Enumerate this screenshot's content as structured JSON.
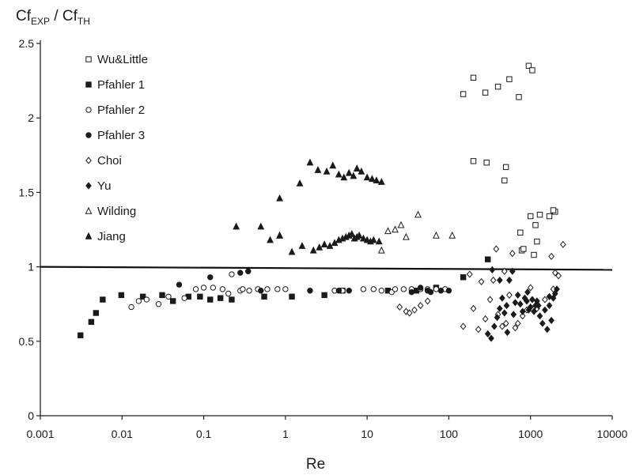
{
  "chart_data": {
    "type": "scatter",
    "title": "",
    "ylabel": {
      "main": "Cf",
      "sub1": "EXP",
      "sep": " / Cf",
      "sub2": "TH"
    },
    "xlabel": "Re",
    "x_scale": "log",
    "xlim": [
      0.001,
      10000
    ],
    "ylim": [
      0,
      2.5
    ],
    "x_ticks": [
      "0.001",
      "0.01",
      "0.1",
      "1",
      "10",
      "100",
      "1000",
      "10000"
    ],
    "y_ticks": [
      "0",
      "0.5",
      "1",
      "1.5",
      "2",
      "2.5"
    ],
    "grid": false,
    "legend_position": "top-left",
    "reference_line": {
      "y_start": 1.0,
      "y_end": 0.98
    },
    "series": [
      {
        "name": "Wu&Little",
        "marker": "open-square",
        "x": [
          150,
          200,
          280,
          400,
          550,
          720,
          950,
          1050,
          200,
          290,
          500,
          480,
          750,
          1000,
          1150,
          1300,
          1700,
          2000,
          780,
          1200,
          1100,
          1900,
          820
        ],
        "y": [
          2.16,
          2.27,
          2.17,
          2.21,
          2.26,
          2.14,
          2.35,
          2.32,
          1.71,
          1.7,
          1.67,
          1.58,
          1.23,
          1.34,
          1.28,
          1.35,
          1.34,
          1.37,
          1.11,
          1.17,
          1.08,
          1.38,
          1.12
        ]
      },
      {
        "name": "Pfahler 1",
        "marker": "filled-square",
        "x": [
          0.0031,
          0.0042,
          0.0048,
          0.0058,
          0.0098,
          0.018,
          0.031,
          0.042,
          0.065,
          0.09,
          0.12,
          0.16,
          0.22,
          0.55,
          1.2,
          3.0,
          5.0,
          18,
          40,
          70,
          150,
          300
        ],
        "y": [
          0.54,
          0.63,
          0.69,
          0.78,
          0.81,
          0.8,
          0.81,
          0.77,
          0.8,
          0.8,
          0.78,
          0.79,
          0.78,
          0.8,
          0.8,
          0.81,
          0.84,
          0.84,
          0.84,
          0.86,
          0.93,
          1.05
        ]
      },
      {
        "name": "Pfahler 2",
        "marker": "open-circle",
        "x": [
          0.013,
          0.016,
          0.02,
          0.028,
          0.037,
          0.058,
          0.08,
          0.1,
          0.13,
          0.17,
          0.22,
          0.28,
          0.36,
          0.46,
          0.6,
          0.8,
          1.0,
          0.2,
          0.3,
          4.0,
          5.0,
          9.0,
          12,
          15,
          20,
          22,
          28,
          35,
          45,
          55,
          70,
          90
        ],
        "y": [
          0.73,
          0.77,
          0.78,
          0.75,
          0.8,
          0.79,
          0.85,
          0.86,
          0.86,
          0.85,
          0.95,
          0.84,
          0.84,
          0.85,
          0.85,
          0.85,
          0.85,
          0.82,
          0.85,
          0.84,
          0.84,
          0.85,
          0.85,
          0.84,
          0.83,
          0.85,
          0.85,
          0.85,
          0.85,
          0.85,
          0.85,
          0.85
        ]
      },
      {
        "name": "Pfahler 3",
        "marker": "filled-circle",
        "x": [
          0.05,
          0.12,
          0.28,
          0.35,
          0.5,
          2.0,
          4.5,
          6.0,
          35,
          55,
          80,
          100,
          60,
          45
        ],
        "y": [
          0.88,
          0.93,
          0.96,
          0.97,
          0.84,
          0.84,
          0.84,
          0.84,
          0.83,
          0.84,
          0.84,
          0.84,
          0.83,
          0.86
        ]
      },
      {
        "name": "Choi",
        "marker": "open-diamond",
        "x": [
          25,
          30,
          33,
          38,
          45,
          55,
          180,
          200,
          230,
          250,
          280,
          320,
          350,
          400,
          450,
          500,
          550,
          600,
          650,
          700,
          800,
          900,
          1000,
          1200,
          1500,
          1800,
          2000,
          2200,
          2500,
          1900,
          480,
          380,
          150
        ],
        "y": [
          0.73,
          0.7,
          0.69,
          0.71,
          0.74,
          0.77,
          0.95,
          0.72,
          0.58,
          0.9,
          0.65,
          0.78,
          0.91,
          0.68,
          0.6,
          0.62,
          0.81,
          1.09,
          0.59,
          0.62,
          0.67,
          0.71,
          0.86,
          0.72,
          0.78,
          1.07,
          0.96,
          0.94,
          1.15,
          0.85,
          0.97,
          1.12,
          0.6
        ]
      },
      {
        "name": "Yu",
        "marker": "filled-diamond",
        "x": [
          300,
          330,
          360,
          390,
          420,
          450,
          480,
          510,
          550,
          600,
          650,
          700,
          750,
          800,
          850,
          900,
          950,
          1000,
          1050,
          1100,
          1150,
          1200,
          1300,
          1400,
          1500,
          1600,
          1700,
          1800,
          1900,
          2000,
          340,
          420,
          520,
          620,
          920,
          1250,
          1700,
          2100
        ],
        "y": [
          0.55,
          0.52,
          0.6,
          0.66,
          0.72,
          0.79,
          0.69,
          0.74,
          0.91,
          0.97,
          0.76,
          0.81,
          0.75,
          0.7,
          0.79,
          0.77,
          0.71,
          0.73,
          0.78,
          0.7,
          0.74,
          0.77,
          0.67,
          0.62,
          0.71,
          0.58,
          0.74,
          0.64,
          0.79,
          0.82,
          0.98,
          0.91,
          0.56,
          0.68,
          0.83,
          0.74,
          0.8,
          0.85
        ]
      },
      {
        "name": "Wilding",
        "marker": "open-triangle",
        "x": [
          15,
          18,
          22,
          26,
          30,
          42,
          70,
          110
        ],
        "y": [
          1.11,
          1.24,
          1.25,
          1.28,
          1.2,
          1.35,
          1.21,
          1.21
        ]
      },
      {
        "name": "Jiang",
        "marker": "filled-triangle",
        "x": [
          0.25,
          0.5,
          0.65,
          0.85,
          1.2,
          1.6,
          2.2,
          2.6,
          3.0,
          3.5,
          4.0,
          4.5,
          5.0,
          5.5,
          6.0,
          6.5,
          7.0,
          7.5,
          8.0,
          9.0,
          10.0,
          11.0,
          12.0,
          14.0,
          0.85,
          1.5,
          2.0,
          2.5,
          3.2,
          3.8,
          4.5,
          5.2,
          6.0,
          6.8,
          7.5,
          8.5,
          10.0,
          11.5,
          13.0,
          15.0,
          0.85
        ],
        "y": [
          1.27,
          1.27,
          1.18,
          1.21,
          1.1,
          1.14,
          1.11,
          1.13,
          1.15,
          1.14,
          1.16,
          1.18,
          1.19,
          1.2,
          1.21,
          1.22,
          1.19,
          1.2,
          1.21,
          1.19,
          1.18,
          1.17,
          1.18,
          1.17,
          1.46,
          1.56,
          1.7,
          1.65,
          1.64,
          1.68,
          1.62,
          1.6,
          1.63,
          1.61,
          1.66,
          1.64,
          1.6,
          1.59,
          1.58,
          1.57,
          1.21
        ]
      }
    ]
  }
}
